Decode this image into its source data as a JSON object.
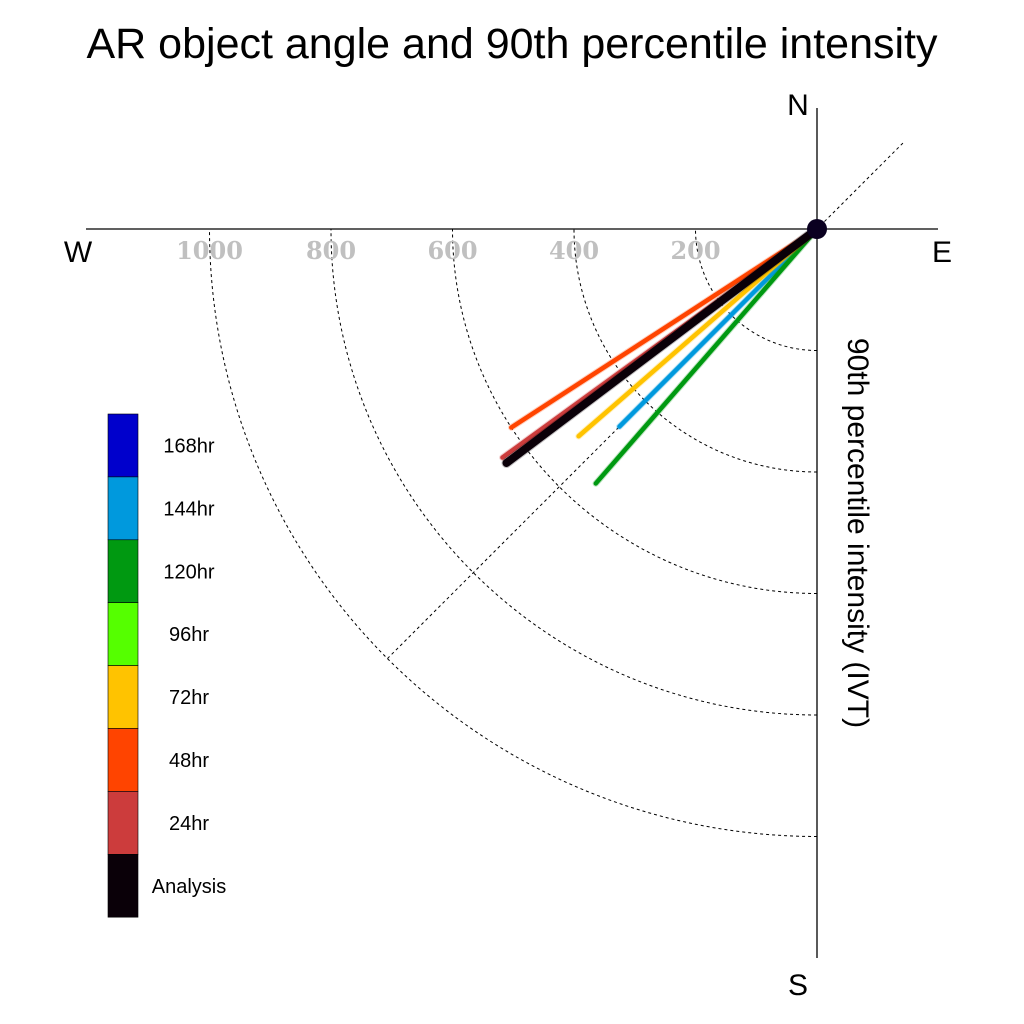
{
  "chart_data": {
    "type": "polar_vector",
    "title": "AR object angle and 90th percentile intensity",
    "radial_axis_label": "90th percentile intensity (IVT)",
    "compass": {
      "north": "N",
      "east": "E",
      "south": "S",
      "west": "W"
    },
    "radial_ticks": [
      200,
      400,
      600,
      800,
      1000
    ],
    "radial_tick_labels": [
      "200",
      "400",
      "600",
      "800",
      "1000"
    ],
    "rlim": [
      0,
      1200
    ],
    "grid": "dashed arcs in south-west quadrant and 45° reference diagonal",
    "legend_position": "left",
    "series": [
      {
        "name": "144hr",
        "color": "#0099dd",
        "angle_deg": 225,
        "start_r": 30,
        "end_r": 460
      },
      {
        "name": "96hr",
        "color": "#55ff00",
        "angle_deg": 233,
        "start_r": 0,
        "end_r": 530
      },
      {
        "name": "120hr",
        "color": "#009911",
        "angle_deg": 221,
        "start_r": 0,
        "end_r": 555
      },
      {
        "name": "72hr",
        "color": "#ffc300",
        "angle_deg": 229,
        "start_r": 0,
        "end_r": 520
      },
      {
        "name": "48hr",
        "color": "#ff4400",
        "angle_deg": 237,
        "start_r": 0,
        "end_r": 600
      },
      {
        "name": "24hr",
        "color": "#cc3c3c",
        "angle_deg": 234,
        "start_r": 0,
        "end_r": 640
      },
      {
        "name": "Analysis",
        "color": "#0a0008",
        "angle_deg": 233,
        "start_r": 0,
        "end_r": 640
      }
    ],
    "legend": [
      {
        "label": "168hr",
        "color": "#0000cc"
      },
      {
        "label": "144hr",
        "color": "#0099dd"
      },
      {
        "label": "120hr",
        "color": "#009911"
      },
      {
        "label": "96hr",
        "color": "#55ff00"
      },
      {
        "label": "72hr",
        "color": "#ffc300"
      },
      {
        "label": "48hr",
        "color": "#ff4400"
      },
      {
        "label": "24hr",
        "color": "#cc3c3c"
      },
      {
        "label": "Analysis",
        "color": "#0a0008"
      }
    ]
  }
}
